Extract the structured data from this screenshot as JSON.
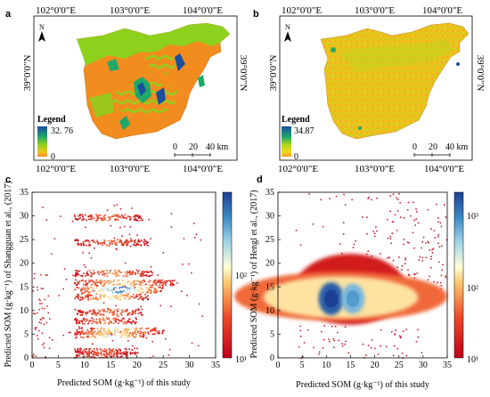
{
  "panels": {
    "a": {
      "letter": "a",
      "top_coords": [
        "102°0'0\"E",
        "103°0'0\"E",
        "104°0'0\"E"
      ],
      "bottom_coords": [
        "102°0'0\"E",
        "103°0'0\"E",
        "104°0'0\"E"
      ],
      "lat_left": "39°0'0\"N",
      "lat_right": "39°0'0\"N",
      "north": "N",
      "legend_title": "Legend",
      "legend_max": "32. 76",
      "legend_min": "0",
      "scale_labels": [
        "0",
        "20",
        "40 km"
      ],
      "colors": {
        "low": "#f28c1e",
        "mid": "#8dd11d",
        "high": "#1a4fa0"
      }
    },
    "b": {
      "letter": "b",
      "top_coords": [
        "102°0'0\"E",
        "103°0'0\"E",
        "104°0'0\"E"
      ],
      "bottom_coords": [
        "102°0'0\"E",
        "103°0'0\"E",
        "104°0'0\"E"
      ],
      "lat_left": "39°0'0\"N",
      "lat_right": "39°0'0\"N",
      "north": "N",
      "legend_title": "Legend",
      "legend_max": "34.87",
      "legend_min": "0",
      "scale_labels": [
        "0",
        "20",
        "40 km"
      ]
    },
    "c": {
      "letter": "c",
      "colorbar_ticks": [
        "10¹",
        "10²"
      ]
    },
    "d": {
      "letter": "d",
      "colorbar_ticks": [
        "10¹",
        "10²",
        "10³"
      ]
    }
  },
  "chart_data": [
    {
      "type": "heatmap",
      "panel": "c",
      "xlabel": "Predicted SOM (g·kg⁻¹) of this study",
      "ylabel": "Predicted SOM (g·kg⁻¹) of Shangguan et al., (2017)",
      "xlim": [
        0,
        35
      ],
      "ylim": [
        0,
        35
      ],
      "xticks": [
        0,
        5,
        10,
        15,
        20,
        25,
        30,
        35
      ],
      "yticks": [
        0,
        5,
        10,
        15,
        20,
        25,
        30,
        35
      ],
      "colorbar": {
        "scale": "log",
        "range": [
          10,
          300
        ]
      },
      "density_bands": [
        {
          "y": 29.8,
          "x_from": 8,
          "x_to": 21,
          "level": 0.35
        },
        {
          "y": 24.5,
          "x_from": 8,
          "x_to": 22,
          "level": 0.35
        },
        {
          "y": 18.0,
          "x_from": 8,
          "x_to": 23,
          "level": 0.45
        },
        {
          "y": 16.0,
          "x_from": 8,
          "x_to": 27,
          "level": 0.55
        },
        {
          "y": 14.5,
          "x_from": 8,
          "x_to": 25,
          "level": 0.9
        },
        {
          "y": 13.0,
          "x_from": 8,
          "x_to": 22,
          "level": 0.6
        },
        {
          "y": 9.8,
          "x_from": 8,
          "x_to": 21,
          "level": 0.4
        },
        {
          "y": 8.0,
          "x_from": 8,
          "x_to": 20,
          "level": 0.4
        },
        {
          "y": 5.8,
          "x_from": 8,
          "x_to": 25,
          "level": 0.6
        },
        {
          "y": 5.0,
          "x_from": 8,
          "x_to": 22,
          "level": 0.7
        },
        {
          "y": 1.5,
          "x_from": 8,
          "x_to": 20,
          "level": 0.3
        },
        {
          "y": 0.8,
          "x_from": 8,
          "x_to": 18,
          "level": 0.3
        }
      ]
    },
    {
      "type": "heatmap",
      "panel": "d",
      "xlabel": "Predicted SOM (g·kg⁻¹) of this study",
      "ylabel": "Predicted SOM (g·kg⁻¹) of Hengl et al., (2017)",
      "xlim": [
        0,
        35
      ],
      "ylim": [
        0,
        35
      ],
      "xticks": [
        0,
        5,
        10,
        15,
        20,
        25,
        30,
        35
      ],
      "yticks": [
        0,
        5,
        10,
        15,
        20,
        25,
        30,
        35
      ],
      "colorbar": {
        "scale": "log",
        "range": [
          10,
          3000
        ]
      },
      "density_cores": [
        {
          "x": 11,
          "y": 12.5,
          "rx": 2.6,
          "ry": 3.5,
          "level": 0.95
        },
        {
          "x": 15.5,
          "y": 12.5,
          "rx": 2.4,
          "ry": 3.2,
          "level": 0.8
        }
      ],
      "cloud": {
        "x_from": 5,
        "x_to": 28,
        "y_from": 7,
        "y_to": 22
      }
    }
  ]
}
